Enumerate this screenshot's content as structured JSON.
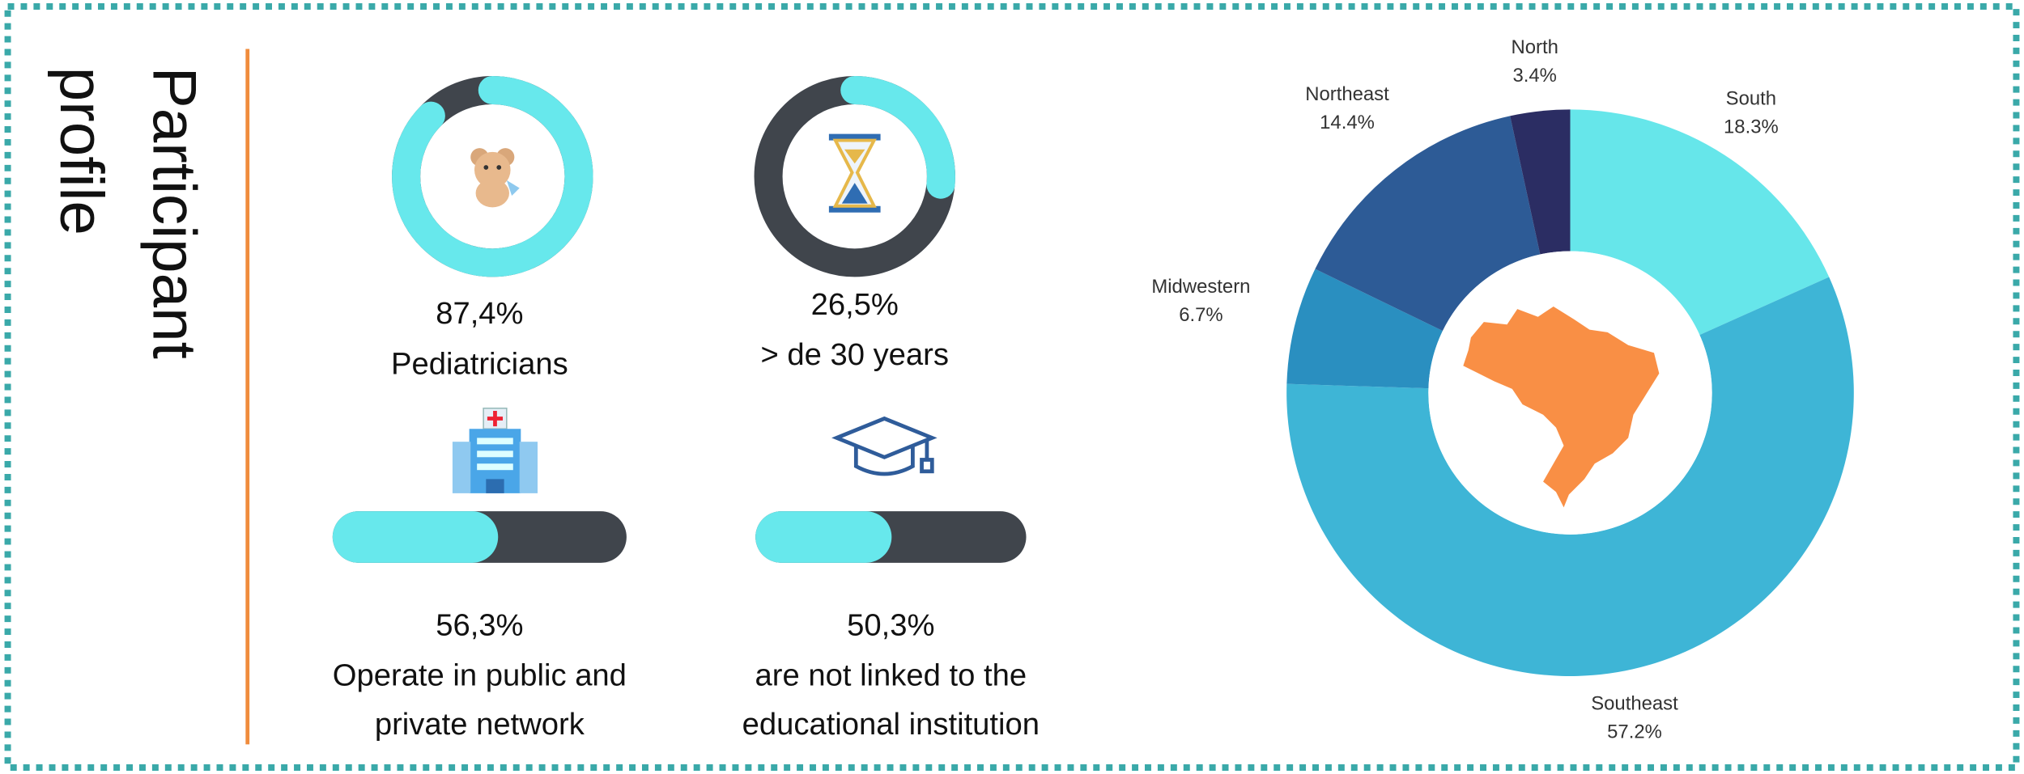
{
  "title": [
    "Participant",
    "profile"
  ],
  "chart_data": [
    {
      "type": "ring",
      "values": [
        87.4
      ],
      "value_labels": [
        "87,4%"
      ],
      "caption": [
        "Pediatricians"
      ],
      "xlim": [
        0,
        100
      ],
      "color": "#67e8ec",
      "track_color": "#40454c"
    },
    {
      "type": "ring",
      "values": [
        26.5
      ],
      "value_labels": [
        "26,5%"
      ],
      "caption": [
        "> de 30 years"
      ],
      "xlim": [
        0,
        100
      ],
      "color": "#67e8ec",
      "track_color": "#40454c"
    },
    {
      "type": "progress",
      "values": [
        56.3
      ],
      "value_labels": [
        "56,3%"
      ],
      "caption": [
        "Operate in public and",
        "private network"
      ],
      "xlim": [
        0,
        100
      ],
      "color": "#67e8ec",
      "track_color": "#40454c"
    },
    {
      "type": "progress",
      "values": [
        50.3
      ],
      "value_labels": [
        "50,3%"
      ],
      "caption": [
        "are not linked to the",
        "educational institution"
      ],
      "xlim": [
        0,
        100
      ],
      "color": "#67e8ec",
      "track_color": "#40454c"
    },
    {
      "type": "pie",
      "categories": [
        "South",
        "Southeast",
        "Midwestern",
        "Northeast",
        "North"
      ],
      "values": [
        18.3,
        57.2,
        6.7,
        14.4,
        3.4
      ],
      "value_labels": [
        "18.3%",
        "57.2%",
        "6.7%",
        "14.4%",
        "3.4%"
      ],
      "colors": [
        "#66e6ea",
        "#3eb5d6",
        "#2a8fc0",
        "#2d5b96",
        "#2b2d63"
      ]
    }
  ]
}
